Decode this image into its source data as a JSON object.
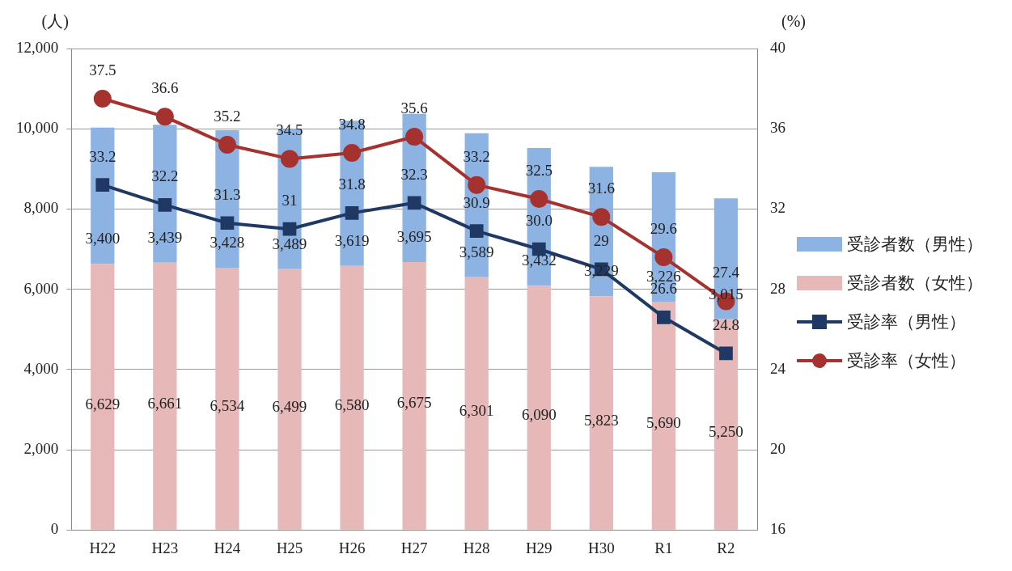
{
  "chart_data": {
    "type": "bar",
    "stacked": true,
    "categories": [
      "H22",
      "H23",
      "H24",
      "H25",
      "H26",
      "H27",
      "H28",
      "H29",
      "H30",
      "R1",
      "R2"
    ],
    "ylabel": "(人)",
    "y2label": "(%)",
    "ylim": [
      0,
      12000
    ],
    "yticks": [
      0,
      {
        "value": 2000,
        "label": "2,000"
      },
      {
        "value": 4000,
        "label": "4,000"
      },
      {
        "value": 6000,
        "label": "6,000"
      },
      {
        "value": 8000,
        "label": "8,000"
      },
      {
        "value": 10000,
        "label": "10,000"
      },
      {
        "value": 12000,
        "label": "12,000"
      }
    ],
    "y2lim": [
      16,
      40
    ],
    "y2ticks": [
      16,
      20,
      24,
      28,
      32,
      36,
      40
    ],
    "grid": "y",
    "legend": "right",
    "series": [
      {
        "name": "受診者数（女性）",
        "color": "#e6b9b8",
        "values": [
          6629,
          6661,
          6534,
          6499,
          6580,
          6675,
          6301,
          6090,
          5823,
          5690,
          5250
        ],
        "value_labels": [
          "6,629",
          "6,661",
          "6,534",
          "6,499",
          "6,580",
          "6,675",
          "6,301",
          "6,090",
          "5,823",
          "5,690",
          "5,250"
        ]
      },
      {
        "name": "受診者数（男性）",
        "color": "#8db3e2",
        "values": [
          3400,
          3439,
          3428,
          3489,
          3619,
          3695,
          3589,
          3432,
          3229,
          3226,
          3015
        ],
        "value_labels": [
          "3,400",
          "3,439",
          "3,428",
          "3,489",
          "3,619",
          "3,695",
          "3,589",
          "3,432",
          "3,229",
          "3,226",
          "3,015"
        ]
      },
      {
        "name": "受診率（男性）",
        "type": "line",
        "axis": "y2",
        "marker": "square",
        "color": "#1f3864",
        "values": [
          33.2,
          32.2,
          31.3,
          31,
          31.8,
          32.3,
          30.9,
          30.0,
          29,
          26.6,
          24.8
        ],
        "value_labels": [
          "33.2",
          "32.2",
          "31.3",
          "31",
          "31.8",
          "32.3",
          "30.9",
          "30.0",
          "29",
          "26.6",
          "24.8"
        ]
      },
      {
        "name": "受診率（女性）",
        "type": "line",
        "axis": "y2",
        "marker": "circle",
        "color": "#a5322f",
        "values": [
          37.5,
          36.6,
          35.2,
          34.5,
          34.8,
          35.6,
          33.2,
          32.5,
          31.6,
          29.6,
          27.4
        ],
        "value_labels": [
          "37.5",
          "36.6",
          "35.2",
          "34.5",
          "34.8",
          "35.6",
          "33.2",
          "32.5",
          "31.6",
          "29.6",
          "27.4"
        ]
      }
    ]
  }
}
